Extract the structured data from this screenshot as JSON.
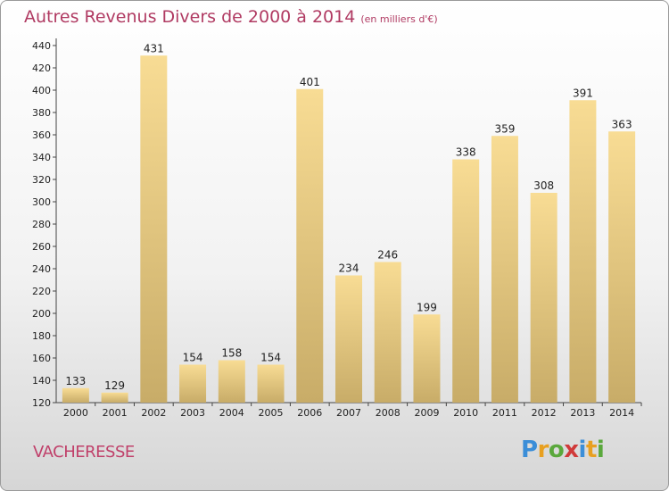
{
  "title": "Autres Revenus Divers de 2000 à 2014",
  "title_unit": "(en milliers d'€)",
  "town": "VACHERESSE",
  "logo": {
    "letters": [
      "P",
      "r",
      "o",
      "x",
      "i",
      "t",
      "i"
    ],
    "colors": [
      "#3b8ed8",
      "#e8a020",
      "#5aa83c",
      "#d03a3a",
      "#3b8ed8",
      "#e8a020",
      "#5aa83c"
    ]
  },
  "colors": {
    "bar_top": "#f8dc94",
    "bar_bottom": "#c8ac68",
    "title": "#b03a62"
  },
  "chart_data": {
    "type": "bar",
    "categories": [
      "2000",
      "2001",
      "2002",
      "2003",
      "2004",
      "2005",
      "2006",
      "2007",
      "2008",
      "2009",
      "2010",
      "2011",
      "2012",
      "2013",
      "2014"
    ],
    "values": [
      133,
      129,
      431,
      154,
      158,
      154,
      401,
      234,
      246,
      199,
      338,
      359,
      308,
      391,
      363
    ],
    "ylim": [
      120,
      440
    ],
    "yticks": [
      120,
      140,
      160,
      180,
      200,
      220,
      240,
      260,
      280,
      300,
      320,
      340,
      360,
      380,
      400,
      420,
      440
    ],
    "grid": false
  }
}
